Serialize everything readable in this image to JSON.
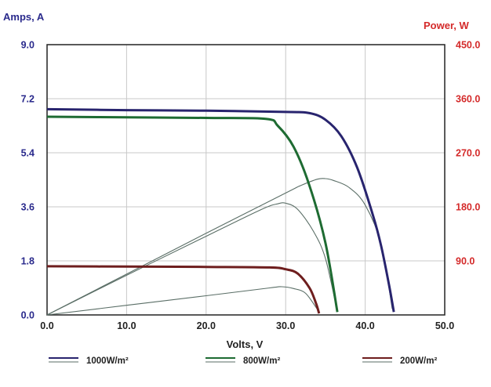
{
  "chart_data": {
    "type": "line",
    "xlabel": "Volts, V",
    "ylabel_left": "Amps, A",
    "ylabel_right": "Power, W",
    "xlim": [
      0,
      50
    ],
    "ylim_left": [
      0,
      9
    ],
    "ylim_right": [
      0,
      450
    ],
    "x_ticks": [
      "0.0",
      "10.0",
      "20.0",
      "30.0",
      "40.0",
      "50.0"
    ],
    "y_left_ticks": [
      "0.0",
      "1.8",
      "3.6",
      "5.4",
      "7.2",
      "9.0"
    ],
    "y_right_ticks": [
      "90.0",
      "180.0",
      "270.0",
      "360.0",
      "450.0"
    ],
    "grid": true,
    "legend_position": "bottom",
    "colors": {
      "left_axis": "#2a2a8c",
      "right_axis": "#d42a2a",
      "grid": "#c8c8c8"
    },
    "series": [
      {
        "name": "1000W/m²",
        "color": "#28246e",
        "current": [
          [
            0,
            6.85
          ],
          [
            10,
            6.82
          ],
          [
            20,
            6.8
          ],
          [
            30,
            6.76
          ],
          [
            33,
            6.72
          ],
          [
            35,
            6.5
          ],
          [
            37,
            5.95
          ],
          [
            39,
            4.9
          ],
          [
            41,
            3.3
          ],
          [
            42,
            2.3
          ],
          [
            43,
            1.0
          ],
          [
            43.6,
            0.1
          ]
        ],
        "power": [
          [
            0,
            0
          ],
          [
            10,
            68
          ],
          [
            20,
            136
          ],
          [
            30,
            203
          ],
          [
            32,
            216
          ],
          [
            34,
            226
          ],
          [
            35,
            227
          ],
          [
            36,
            224
          ],
          [
            38,
            212
          ],
          [
            40,
            183
          ],
          [
            42,
            118
          ],
          [
            43.4,
            10
          ]
        ]
      },
      {
        "name": "800W/m²",
        "color": "#1e6b32",
        "current": [
          [
            0,
            6.6
          ],
          [
            10,
            6.58
          ],
          [
            20,
            6.56
          ],
          [
            27.5,
            6.53
          ],
          [
            29,
            6.3
          ],
          [
            31,
            5.6
          ],
          [
            33,
            4.3
          ],
          [
            35,
            2.4
          ],
          [
            36.5,
            0.1
          ]
        ],
        "power": [
          [
            0,
            0
          ],
          [
            10,
            66
          ],
          [
            20,
            131
          ],
          [
            27,
            176
          ],
          [
            29,
            185
          ],
          [
            30,
            186
          ],
          [
            31.5,
            176
          ],
          [
            33.5,
            139
          ],
          [
            35,
            94
          ],
          [
            36.5,
            5
          ]
        ]
      },
      {
        "name": "200W/m²",
        "color": "#6e1e1e",
        "current": [
          [
            0,
            1.62
          ],
          [
            10,
            1.61
          ],
          [
            20,
            1.6
          ],
          [
            28,
            1.58
          ],
          [
            30,
            1.52
          ],
          [
            31.5,
            1.38
          ],
          [
            33,
            0.9
          ],
          [
            33.8,
            0.4
          ],
          [
            34.2,
            0.05
          ]
        ],
        "power": [
          [
            0,
            0
          ],
          [
            10,
            16
          ],
          [
            20,
            32
          ],
          [
            28,
            45
          ],
          [
            29.5,
            47
          ],
          [
            31,
            44
          ],
          [
            32.5,
            36
          ],
          [
            34,
            9
          ]
        ]
      }
    ]
  }
}
